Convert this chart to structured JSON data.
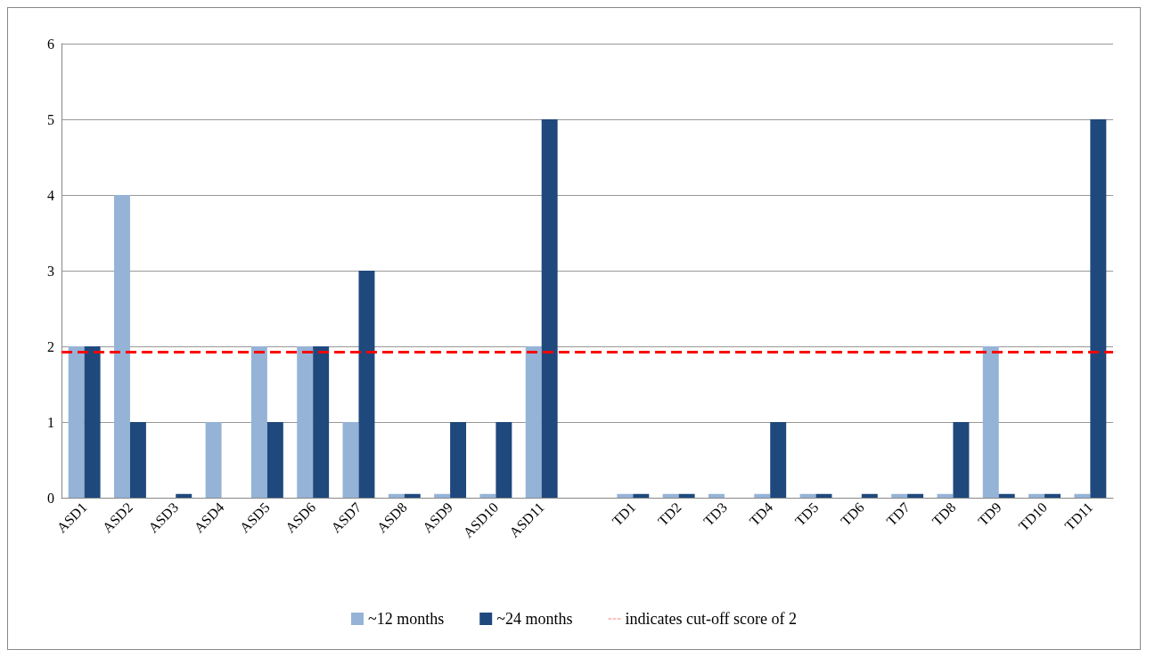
{
  "chart_data": {
    "type": "bar",
    "categories": [
      "ASD1",
      "ASD2",
      "ASD3",
      "ASD4",
      "ASD5",
      "ASD6",
      "ASD7",
      "ASD8",
      "ASD9",
      "ASD10",
      "ASD11",
      null,
      "TD1",
      "TD2",
      "TD3",
      "TD4",
      "TD5",
      "TD6",
      "TD7",
      "TD8",
      "TD9",
      "TD10",
      "TD11"
    ],
    "series": [
      {
        "name": "~12 months",
        "color": "#95b3d7",
        "values": [
          2,
          4,
          null,
          1,
          2,
          2,
          1,
          0.05,
          0.05,
          0.05,
          2,
          null,
          0.05,
          0.05,
          0.05,
          0.05,
          0.05,
          null,
          0.05,
          0.05,
          2,
          0.05,
          0.05
        ]
      },
      {
        "name": "~24 months",
        "color": "#1f497d",
        "values": [
          2,
          1,
          0.05,
          null,
          1,
          2,
          3,
          0.05,
          1,
          1,
          5,
          null,
          0.05,
          0.05,
          null,
          1,
          0.05,
          0.05,
          0.05,
          1,
          0.05,
          0.05,
          5
        ]
      }
    ],
    "ylim": [
      0,
      6
    ],
    "yticks": [
      0,
      1,
      2,
      3,
      4,
      5,
      6
    ],
    "grid": "y",
    "legend": "bottom",
    "ref_lines": [
      {
        "axis": "y",
        "value": 1.93,
        "label": "indicates cut-off score of 2",
        "color": "#ff0000",
        "line_style": "dashed"
      }
    ]
  }
}
